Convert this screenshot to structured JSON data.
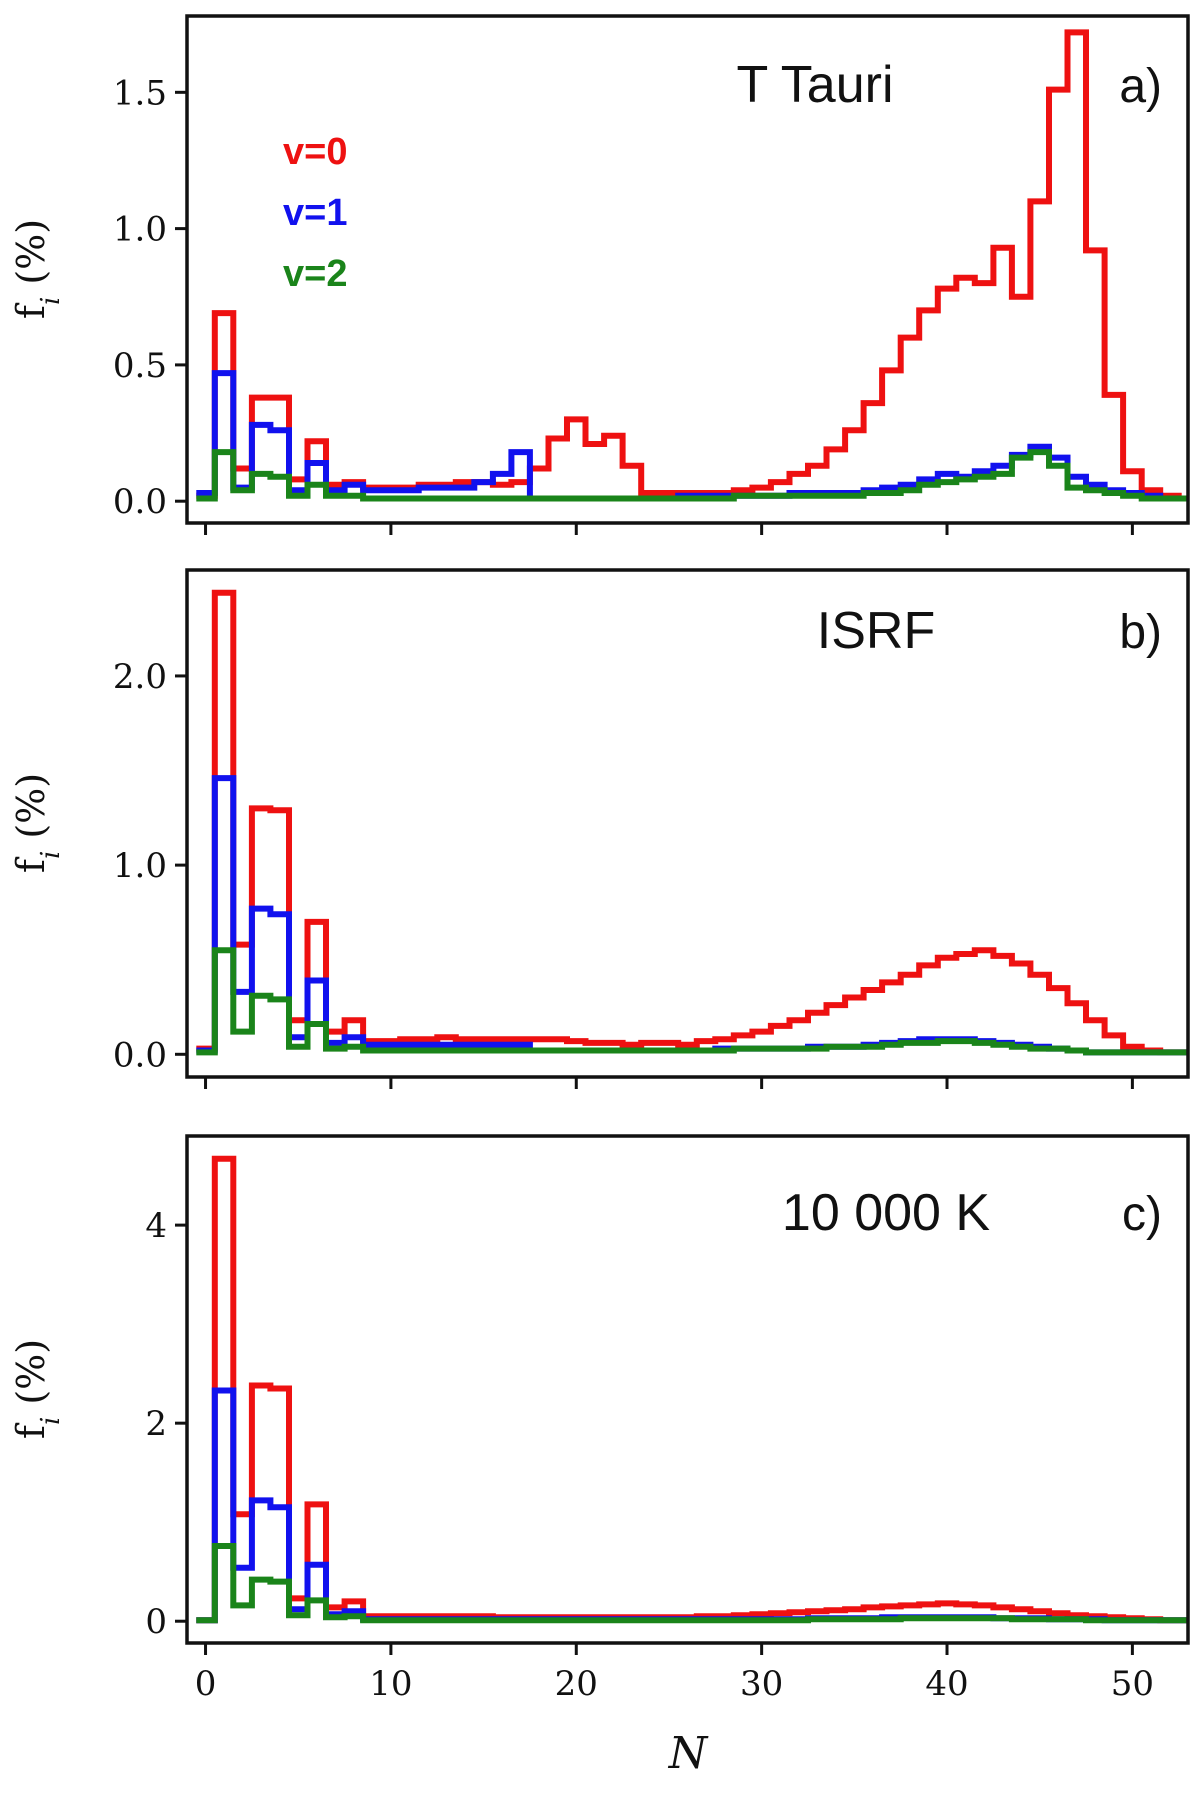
{
  "chart_data": [
    {
      "type": "line",
      "panel": "a)",
      "title": "T Tauri",
      "xlabel": "",
      "ylabel": "f_i (%)",
      "xlim": [
        -1,
        53
      ],
      "ylim": [
        -0.08,
        1.78
      ],
      "yticks": [
        0.0,
        0.5,
        1.0,
        1.5
      ],
      "ytick_labels": [
        "0.0",
        "0.5",
        "1.0",
        "1.5"
      ],
      "xticks": [
        0,
        10,
        20,
        30,
        40,
        50
      ],
      "xtick_labels": [],
      "grid": false,
      "legend_placement": "top-left",
      "series": [
        {
          "name": "v=0",
          "color": "#ee1111",
          "values": [
            0.02,
            0.69,
            0.12,
            0.38,
            0.38,
            0.08,
            0.22,
            0.06,
            0.07,
            0.05,
            0.05,
            0.05,
            0.06,
            0.06,
            0.07,
            0.07,
            0.06,
            0.07,
            0.12,
            0.23,
            0.3,
            0.21,
            0.24,
            0.13,
            0.03,
            0.03,
            0.03,
            0.03,
            0.03,
            0.04,
            0.05,
            0.07,
            0.1,
            0.13,
            0.19,
            0.26,
            0.36,
            0.48,
            0.6,
            0.7,
            0.78,
            0.82,
            0.8,
            0.93,
            0.75,
            1.1,
            1.51,
            1.72,
            0.92,
            0.39,
            0.11,
            0.04,
            0.02,
            0.01
          ]
        },
        {
          "name": "v=1",
          "color": "#1111ee",
          "values": [
            0.03,
            0.47,
            0.05,
            0.28,
            0.26,
            0.04,
            0.14,
            0.04,
            0.06,
            0.04,
            0.04,
            0.04,
            0.05,
            0.05,
            0.05,
            0.07,
            0.1,
            0.18,
            0.01,
            0.01,
            0.01,
            0.01,
            0.01,
            0.01,
            0.01,
            0.01,
            0.02,
            0.02,
            0.02,
            0.02,
            0.02,
            0.02,
            0.03,
            0.03,
            0.03,
            0.03,
            0.04,
            0.05,
            0.06,
            0.08,
            0.1,
            0.09,
            0.11,
            0.13,
            0.17,
            0.2,
            0.16,
            0.09,
            0.06,
            0.04,
            0.03,
            0.02,
            0.01,
            0.01
          ]
        },
        {
          "name": "v=2",
          "color": "#1a841a",
          "values": [
            0.01,
            0.18,
            0.04,
            0.1,
            0.09,
            0.02,
            0.06,
            0.02,
            0.02,
            0.01,
            0.01,
            0.01,
            0.01,
            0.01,
            0.01,
            0.01,
            0.01,
            0.01,
            0.01,
            0.01,
            0.01,
            0.01,
            0.01,
            0.01,
            0.01,
            0.01,
            0.01,
            0.01,
            0.01,
            0.02,
            0.02,
            0.02,
            0.02,
            0.02,
            0.02,
            0.02,
            0.03,
            0.03,
            0.04,
            0.06,
            0.07,
            0.08,
            0.09,
            0.1,
            0.16,
            0.18,
            0.13,
            0.05,
            0.04,
            0.03,
            0.02,
            0.01,
            0.01,
            0.01
          ]
        }
      ]
    },
    {
      "type": "line",
      "panel": "b)",
      "title": "ISRF",
      "xlabel": "",
      "ylabel": "f_i (%)",
      "xlim": [
        -1,
        53
      ],
      "ylim": [
        -0.12,
        2.56
      ],
      "yticks": [
        0.0,
        1.0,
        2.0
      ],
      "ytick_labels": [
        "0.0",
        "1.0",
        "2.0"
      ],
      "xticks": [
        0,
        10,
        20,
        30,
        40,
        50
      ],
      "xtick_labels": [],
      "grid": false,
      "series": [
        {
          "name": "v=0",
          "color": "#ee1111",
          "values": [
            0.03,
            2.44,
            0.58,
            1.3,
            1.29,
            0.18,
            0.7,
            0.12,
            0.18,
            0.07,
            0.07,
            0.08,
            0.08,
            0.09,
            0.08,
            0.08,
            0.08,
            0.08,
            0.08,
            0.08,
            0.07,
            0.06,
            0.06,
            0.05,
            0.06,
            0.06,
            0.05,
            0.07,
            0.08,
            0.1,
            0.12,
            0.15,
            0.18,
            0.22,
            0.26,
            0.3,
            0.34,
            0.38,
            0.42,
            0.47,
            0.51,
            0.53,
            0.55,
            0.52,
            0.48,
            0.42,
            0.35,
            0.27,
            0.18,
            0.1,
            0.04,
            0.02,
            0.01,
            0.01
          ]
        },
        {
          "name": "v=1",
          "color": "#1111ee",
          "values": [
            0.02,
            1.46,
            0.33,
            0.77,
            0.74,
            0.09,
            0.39,
            0.06,
            0.09,
            0.05,
            0.05,
            0.05,
            0.05,
            0.05,
            0.05,
            0.05,
            0.05,
            0.05,
            0.02,
            0.02,
            0.02,
            0.02,
            0.02,
            0.02,
            0.02,
            0.02,
            0.02,
            0.02,
            0.03,
            0.03,
            0.03,
            0.03,
            0.03,
            0.04,
            0.04,
            0.04,
            0.05,
            0.06,
            0.07,
            0.08,
            0.08,
            0.08,
            0.07,
            0.06,
            0.05,
            0.04,
            0.03,
            0.02,
            0.01,
            0.01,
            0.01,
            0.01,
            0.01,
            0.01
          ]
        },
        {
          "name": "v=2",
          "color": "#1a841a",
          "values": [
            0.01,
            0.55,
            0.12,
            0.31,
            0.29,
            0.04,
            0.16,
            0.03,
            0.04,
            0.02,
            0.02,
            0.02,
            0.02,
            0.02,
            0.02,
            0.02,
            0.02,
            0.02,
            0.02,
            0.02,
            0.02,
            0.02,
            0.02,
            0.02,
            0.02,
            0.02,
            0.02,
            0.02,
            0.02,
            0.03,
            0.03,
            0.03,
            0.03,
            0.03,
            0.04,
            0.04,
            0.04,
            0.05,
            0.06,
            0.06,
            0.07,
            0.07,
            0.06,
            0.05,
            0.04,
            0.03,
            0.03,
            0.02,
            0.01,
            0.01,
            0.01,
            0.01,
            0.01,
            0.01
          ]
        }
      ]
    },
    {
      "type": "line",
      "panel": "c)",
      "title": "10 000 K",
      "xlabel": "N",
      "ylabel": "f_i (%)",
      "xlim": [
        -1,
        53
      ],
      "ylim": [
        -0.22,
        4.9
      ],
      "yticks": [
        0,
        2,
        4
      ],
      "ytick_labels": [
        "0",
        "2",
        "4"
      ],
      "xticks": [
        0,
        10,
        20,
        30,
        40,
        50
      ],
      "xtick_labels": [
        "0",
        "10",
        "20",
        "30",
        "40",
        "50"
      ],
      "grid": false,
      "series": [
        {
          "name": "v=0",
          "color": "#ee1111",
          "values": [
            0.01,
            4.67,
            1.08,
            2.38,
            2.35,
            0.23,
            1.18,
            0.14,
            0.2,
            0.05,
            0.05,
            0.05,
            0.05,
            0.05,
            0.05,
            0.05,
            0.04,
            0.04,
            0.04,
            0.04,
            0.04,
            0.04,
            0.04,
            0.04,
            0.04,
            0.04,
            0.04,
            0.05,
            0.05,
            0.06,
            0.07,
            0.08,
            0.09,
            0.1,
            0.11,
            0.12,
            0.14,
            0.15,
            0.16,
            0.17,
            0.18,
            0.17,
            0.16,
            0.14,
            0.12,
            0.1,
            0.08,
            0.06,
            0.05,
            0.04,
            0.03,
            0.02,
            0.01,
            0.01
          ]
        },
        {
          "name": "v=1",
          "color": "#1111ee",
          "values": [
            0.01,
            2.33,
            0.54,
            1.22,
            1.15,
            0.12,
            0.57,
            0.07,
            0.1,
            0.02,
            0.02,
            0.02,
            0.02,
            0.02,
            0.02,
            0.02,
            0.02,
            0.02,
            0.02,
            0.02,
            0.02,
            0.02,
            0.02,
            0.02,
            0.02,
            0.02,
            0.02,
            0.02,
            0.02,
            0.02,
            0.02,
            0.02,
            0.02,
            0.03,
            0.03,
            0.03,
            0.03,
            0.04,
            0.04,
            0.04,
            0.04,
            0.04,
            0.04,
            0.03,
            0.03,
            0.03,
            0.02,
            0.02,
            0.02,
            0.01,
            0.01,
            0.01,
            0.01,
            0.01
          ]
        },
        {
          "name": "v=2",
          "color": "#1a841a",
          "values": [
            0.01,
            0.76,
            0.16,
            0.42,
            0.4,
            0.06,
            0.21,
            0.04,
            0.05,
            0.01,
            0.01,
            0.01,
            0.01,
            0.01,
            0.01,
            0.01,
            0.01,
            0.01,
            0.01,
            0.01,
            0.01,
            0.01,
            0.01,
            0.01,
            0.01,
            0.01,
            0.01,
            0.01,
            0.01,
            0.01,
            0.01,
            0.01,
            0.01,
            0.02,
            0.02,
            0.02,
            0.02,
            0.02,
            0.03,
            0.03,
            0.03,
            0.03,
            0.03,
            0.03,
            0.02,
            0.02,
            0.02,
            0.02,
            0.01,
            0.01,
            0.01,
            0.01,
            0.01,
            0.01
          ]
        }
      ]
    }
  ]
}
